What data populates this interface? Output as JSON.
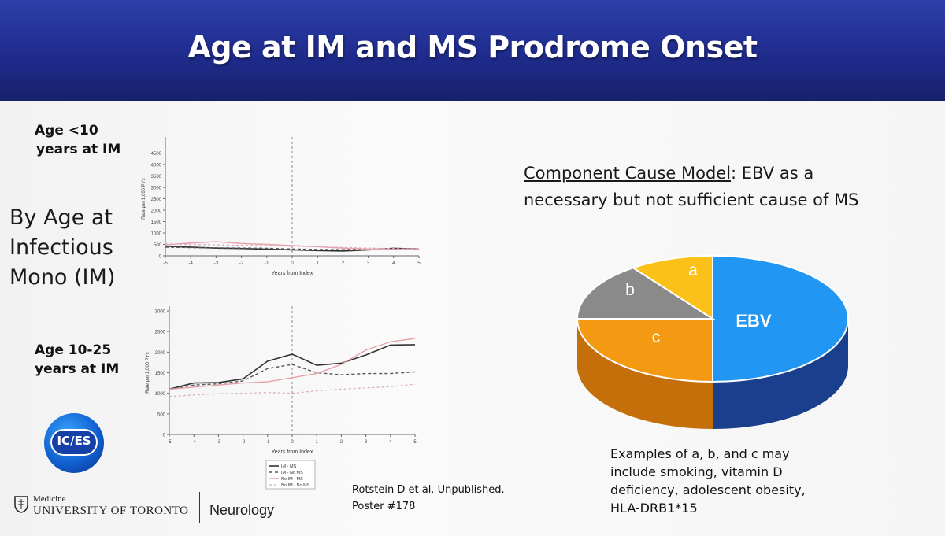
{
  "slide": {
    "title": "Age at IM and MS Prodrome Onset",
    "by_age_lines": [
      "By Age at",
      "Infectious",
      "Mono (IM)"
    ],
    "panel_top_label": [
      "Age <10",
      "years at IM"
    ],
    "panel_bottom_label": [
      "Age 10-25",
      "years at IM"
    ],
    "component_model_link": "Component Cause Model",
    "component_model_rest_1": ": EBV as a",
    "component_model_line2": "necessary but not sufficient cause of MS",
    "examples": [
      "Examples of a, b, and c may",
      "include smoking, vitamin D",
      "deficiency, adolescent obesity,",
      "HLA-DRB1*15"
    ],
    "citation": [
      "Rotstein D et al. Unpublished.",
      "Poster #178"
    ],
    "logo_ices": "IC/ES",
    "uoft_medicine": "Medicine",
    "uoft_name": "UNIVERSITY OF TORONTO",
    "department": "Neurology",
    "colors": {
      "header": "#1f2b8c",
      "ebv": "#2196f3",
      "c": "#f39a12",
      "b": "#8a8a8a",
      "a": "#fcc118"
    }
  },
  "chart_data": [
    {
      "type": "line",
      "title": "Age <10 years at IM",
      "xlabel": "Years from Index",
      "ylabel": "Rate per 1,000 PYs",
      "x": [
        -5,
        -4,
        -3,
        -2,
        -1,
        0,
        1,
        2,
        3,
        4,
        5
      ],
      "xlim": [
        -5,
        5
      ],
      "ylim": [
        0,
        5000
      ],
      "yticks": [
        0,
        500,
        1000,
        1500,
        2000,
        2500,
        3000,
        3500,
        4000,
        4500
      ],
      "ytick_labels": [
        "0",
        "500",
        "1000",
        "1500",
        "2000",
        "2500",
        "3000",
        "3500",
        "4000",
        "4500"
      ],
      "xtick_labels": [
        "-5",
        "-4",
        "-3",
        "-2",
        "-1",
        "0",
        "1",
        "2",
        "3",
        "4",
        "5"
      ],
      "index_line_x": 0,
      "series": [
        {
          "name": "IM - MS",
          "values": [
            420,
            380,
            340,
            320,
            290,
            260,
            230,
            210,
            260,
            330,
            300
          ]
        },
        {
          "name": "IM - No MS",
          "values": [
            380,
            360,
            350,
            340,
            330,
            300,
            280,
            270,
            290,
            300,
            320
          ]
        },
        {
          "name": "No IM - MS",
          "values": [
            480,
            560,
            620,
            540,
            500,
            450,
            400,
            340,
            300,
            280,
            310
          ]
        },
        {
          "name": "No IM - No MS",
          "values": [
            520,
            500,
            480,
            460,
            450,
            420,
            400,
            370,
            340,
            320,
            300
          ]
        }
      ]
    },
    {
      "type": "line",
      "title": "Age 10-25 years at IM",
      "xlabel": "Years from Index",
      "ylabel": "Rate per 1,000 PYs",
      "x": [
        -5,
        -4,
        -3,
        -2,
        -1,
        0,
        1,
        2,
        3,
        4,
        5
      ],
      "xlim": [
        -5,
        5
      ],
      "ylim": [
        0,
        3000
      ],
      "yticks": [
        0,
        500,
        1000,
        1500,
        2000,
        2500,
        3000
      ],
      "ytick_labels": [
        "0",
        "500",
        "1000",
        "1500",
        "2000",
        "2500",
        "3000"
      ],
      "xtick_labels": [
        "-5",
        "-4",
        "-3",
        "-2",
        "-1",
        "0",
        "1",
        "2",
        "3",
        "4",
        "5"
      ],
      "index_line_x": 0,
      "series": [
        {
          "name": "IM - MS",
          "values": [
            1100,
            1250,
            1260,
            1350,
            1780,
            1950,
            1680,
            1730,
            1930,
            2170,
            2180
          ]
        },
        {
          "name": "IM - No MS",
          "values": [
            1100,
            1200,
            1230,
            1300,
            1600,
            1700,
            1500,
            1450,
            1480,
            1480,
            1520
          ]
        },
        {
          "name": "No IM - MS",
          "values": [
            1100,
            1150,
            1200,
            1250,
            1280,
            1380,
            1480,
            1700,
            2050,
            2250,
            2330
          ]
        },
        {
          "name": "No IM - No MS",
          "values": [
            920,
            960,
            990,
            1000,
            1020,
            1000,
            1060,
            1100,
            1130,
            1160,
            1220
          ]
        }
      ],
      "legend": [
        "IM - MS",
        "IM - No MS",
        "No IM - MS",
        "No IM - No MS"
      ]
    },
    {
      "type": "pie",
      "title": "Component Cause Model",
      "labels": [
        "EBV",
        "c",
        "b",
        "a"
      ],
      "values": [
        50,
        25,
        15,
        10
      ]
    }
  ]
}
